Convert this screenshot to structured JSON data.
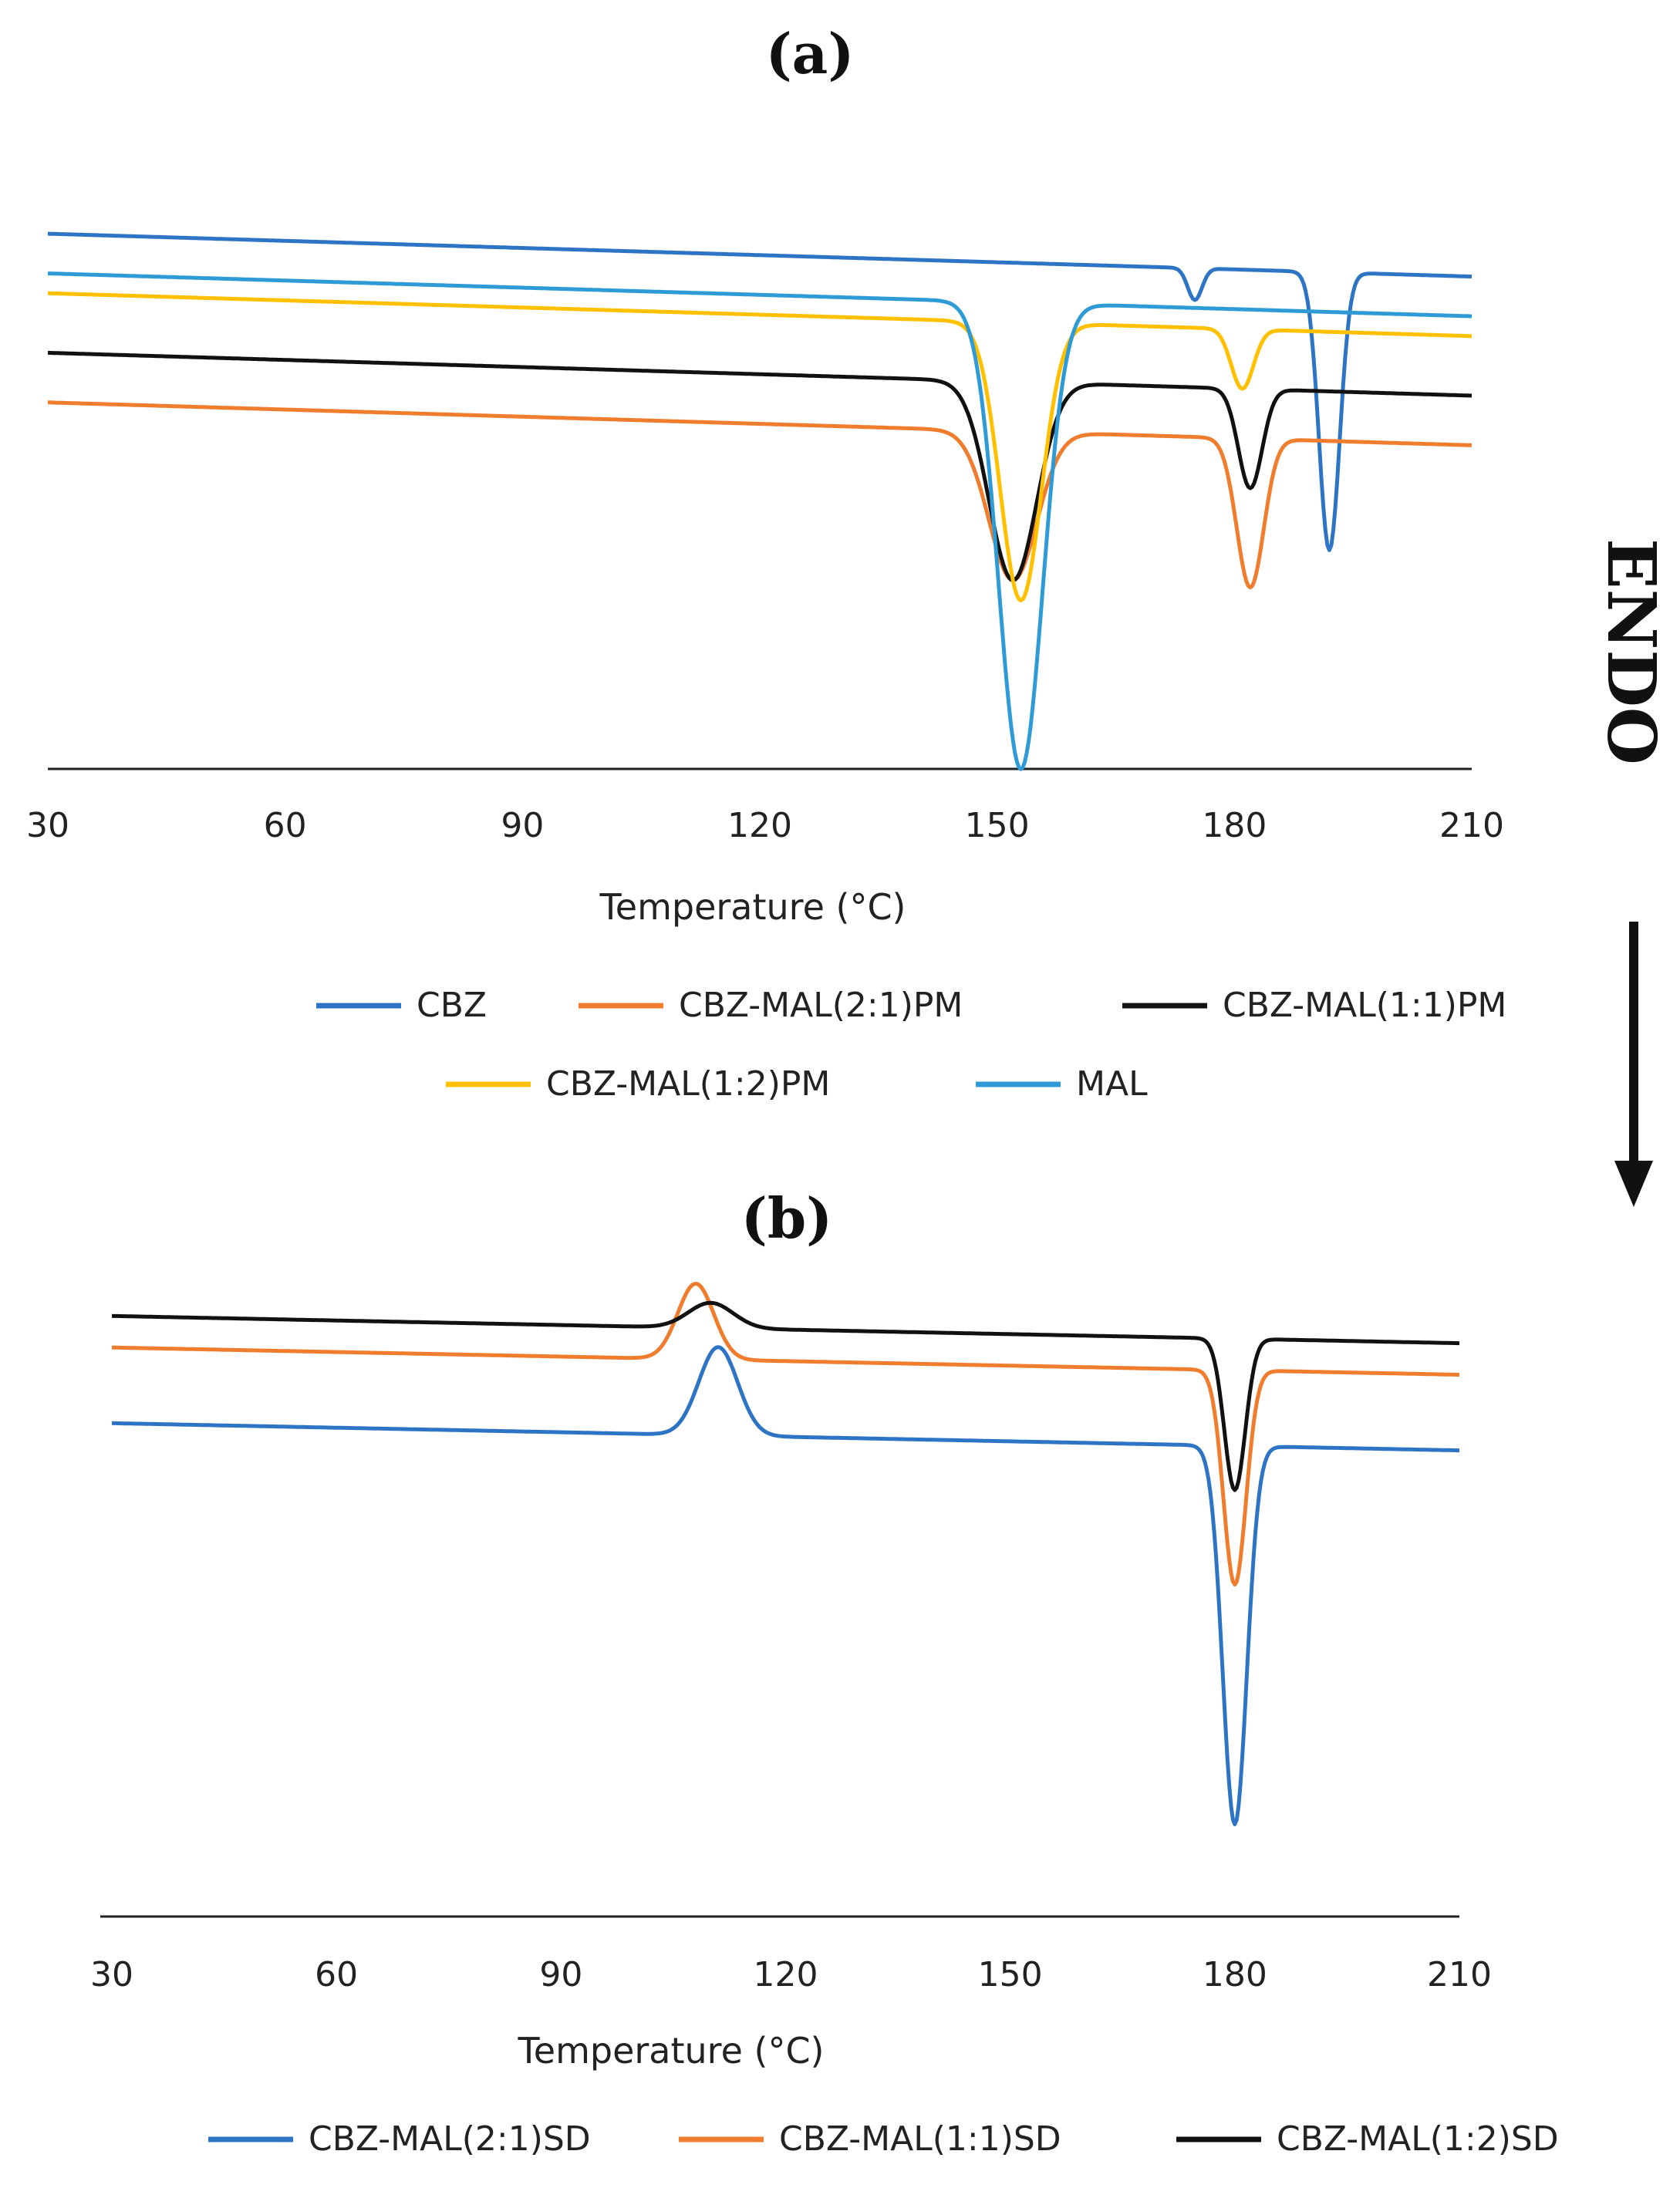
{
  "chart_data": [
    {
      "panel": "(a)",
      "type": "line",
      "title": "(a)",
      "xlabel": "Temperature  (°C)",
      "ylabel": "",
      "xlim": [
        30,
        210
      ],
      "ticks": [
        30,
        60,
        90,
        120,
        150,
        180,
        210
      ],
      "grid": false,
      "legend_position": "bottom",
      "series": [
        {
          "name": "CBZ",
          "color": "#2E74C4",
          "baseline": 0.5,
          "events": [
            {
              "t": 175,
              "depth": 1.6,
              "width": 0.9
            },
            {
              "t": 192,
              "depth": 14.0,
              "width": 1.3
            }
          ]
        },
        {
          "name": "CBZ-MAL(2:1)PM",
          "color": "#F07D2E",
          "baseline": -8.0,
          "events": [
            {
              "t": 152,
              "depth": 7.5,
              "width": 3.0
            },
            {
              "t": 182,
              "depth": 7.5,
              "width": 1.7
            }
          ]
        },
        {
          "name": "CBZ-MAL(1:1)PM",
          "color": "#111111",
          "baseline": -5.5,
          "events": [
            {
              "t": 152,
              "depth": 10.0,
              "width": 3.0
            },
            {
              "t": 182,
              "depth": 5.0,
              "width": 1.5
            }
          ]
        },
        {
          "name": "CBZ-MAL(1:2)PM",
          "color": "#FFC000",
          "baseline": -2.5,
          "events": [
            {
              "t": 153,
              "depth": 14.0,
              "width": 2.6
            },
            {
              "t": 181,
              "depth": 3.0,
              "width": 1.4
            }
          ]
        },
        {
          "name": "MAL",
          "color": "#2E9BD6",
          "baseline": -1.5,
          "events": [
            {
              "t": 153,
              "depth": 23.5,
              "width": 2.8
            }
          ]
        }
      ]
    },
    {
      "panel": "(b)",
      "type": "line",
      "title": "(b)",
      "xlabel": "Temperature  (°C)",
      "ylabel": "",
      "xlim": [
        30,
        210
      ],
      "ticks": [
        30,
        60,
        90,
        120,
        150,
        180,
        210
      ],
      "grid": false,
      "legend_position": "bottom",
      "series": [
        {
          "name": "CBZ-MAL(2:1)SD",
          "color": "#2E74C4",
          "baseline": -5.0,
          "events": [
            {
              "t": 111,
              "depth": -7.0,
              "width": 2.6
            },
            {
              "t": 180,
              "depth": 30.0,
              "width": 1.6
            }
          ]
        },
        {
          "name": "CBZ-MAL(1:1)SD",
          "color": "#F07D2E",
          "baseline": 1.0,
          "events": [
            {
              "t": 108,
              "depth": -6.0,
              "width": 2.4
            },
            {
              "t": 180,
              "depth": 17.0,
              "width": 1.5
            }
          ]
        },
        {
          "name": "CBZ-MAL(1:2)SD",
          "color": "#111111",
          "baseline": 3.5,
          "events": [
            {
              "t": 110,
              "depth": -2.0,
              "width": 3.0
            },
            {
              "t": 180,
              "depth": 12.0,
              "width": 1.4
            }
          ]
        }
      ]
    }
  ],
  "endo_label": "ENDO"
}
